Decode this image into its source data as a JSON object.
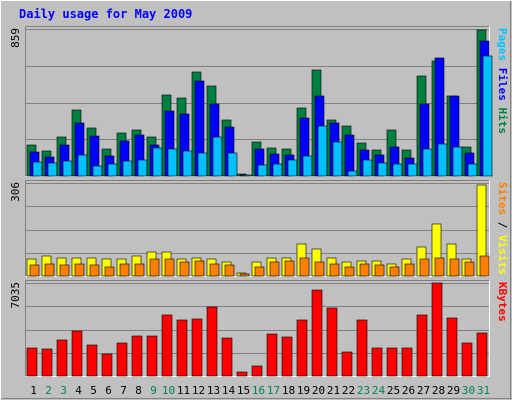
{
  "chart_data": {
    "type": "bar",
    "title": "Daily usage for May 2009",
    "categories": [
      "1",
      "2",
      "3",
      "4",
      "5",
      "6",
      "7",
      "8",
      "9",
      "10",
      "11",
      "12",
      "13",
      "14",
      "15",
      "16",
      "17",
      "18",
      "19",
      "20",
      "21",
      "22",
      "23",
      "24",
      "25",
      "26",
      "27",
      "28",
      "29",
      "30",
      "31"
    ],
    "weekend_days": [
      "2",
      "3",
      "9",
      "10",
      "16",
      "17",
      "23",
      "24",
      "30",
      "31"
    ],
    "panels": [
      {
        "name": "top",
        "ymax_label": "859",
        "ymax": 859,
        "right_labels": [
          "Pages",
          "Files",
          "Hits"
        ],
        "series": [
          {
            "name": "Hits",
            "color": "#008040",
            "values": [
              180,
              145,
              225,
              385,
              280,
              160,
              250,
              270,
              225,
              475,
              455,
              610,
              525,
              330,
              10,
              200,
              165,
              160,
              400,
              620,
              330,
              295,
              195,
              150,
              270,
              150,
              585,
              670,
              470,
              170,
              855
            ]
          },
          {
            "name": "Files",
            "color": "#0000ff",
            "values": [
              140,
              110,
              180,
              310,
              235,
              115,
              205,
              240,
              180,
              380,
              360,
              555,
              420,
              285,
              5,
              155,
              130,
              125,
              340,
              465,
              310,
              240,
              150,
              120,
              170,
              105,
              420,
              690,
              465,
              135,
              790
            ]
          },
          {
            "name": "Pages",
            "color": "#00c0ff",
            "values": [
              80,
              75,
              90,
              120,
              60,
              70,
              85,
              95,
              165,
              160,
              145,
              135,
              225,
              135,
              2,
              65,
              70,
              95,
              115,
              295,
              200,
              30,
              95,
              75,
              70,
              70,
              160,
              185,
              170,
              70,
              700
            ]
          }
        ]
      },
      {
        "name": "middle",
        "ymax_label": "306",
        "ymax": 306,
        "right_labels": [
          "Sites",
          "/",
          "Visits"
        ],
        "series": [
          {
            "name": "Visits",
            "color": "#ffff00",
            "values": [
              55,
              65,
              60,
              60,
              60,
              55,
              55,
              65,
              80,
              80,
              55,
              60,
              55,
              45,
              10,
              45,
              60,
              60,
              105,
              90,
              60,
              45,
              50,
              50,
              40,
              55,
              95,
              170,
              105,
              55,
              300
            ]
          },
          {
            "name": "Sites",
            "color": "#ff8000",
            "values": [
              35,
              40,
              35,
              40,
              35,
              30,
              40,
              40,
              55,
              55,
              45,
              50,
              40,
              35,
              5,
              30,
              45,
              50,
              60,
              45,
              40,
              30,
              40,
              35,
              30,
              40,
              55,
              60,
              55,
              45,
              65
            ]
          }
        ]
      },
      {
        "name": "bottom",
        "ymax_label": "7035",
        "ymax": 7035,
        "right_labels": [
          "KBytes"
        ],
        "series": [
          {
            "name": "KBytes",
            "color": "#ff0000",
            "values": [
              2115,
              2080,
              2735,
              3440,
              2330,
              1685,
              2460,
              3000,
              3035,
              4630,
              4210,
              4320,
              5220,
              2900,
              300,
              780,
              3190,
              2970,
              4205,
              6490,
              5160,
              1795,
              4215,
              2090,
              2150,
              2150,
              4630,
              7035,
              4360,
              2490,
              3250
            ]
          }
        ]
      }
    ],
    "colors": {
      "background": "#c0c0c0",
      "title": "#0000ff",
      "grid": "#808080",
      "weekday_label": "#000000",
      "weekend_label": "#00805c"
    }
  }
}
